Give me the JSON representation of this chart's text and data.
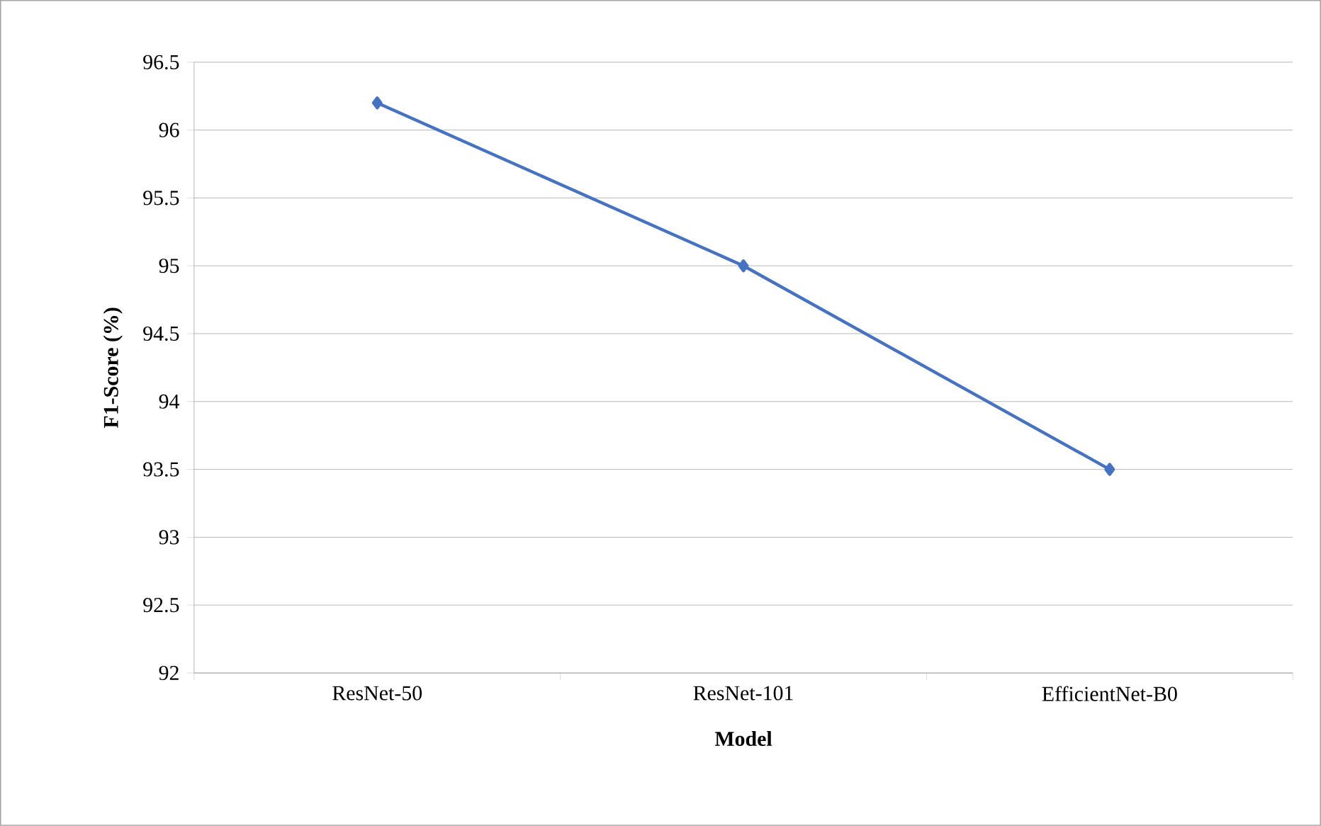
{
  "chart_data": {
    "type": "line",
    "xlabel": "Model",
    "ylabel": "F1-Score (%)",
    "categories": [
      "ResNet-50",
      "ResNet-101",
      "EfficientNet-B0"
    ],
    "series": [
      {
        "color": "#4472c4",
        "values": [
          96.2,
          95.0,
          93.5
        ]
      }
    ],
    "ylim": [
      92,
      96.5
    ],
    "yticks": [
      92,
      92.5,
      93,
      93.5,
      94,
      94.5,
      95,
      95.5,
      96,
      96.5
    ],
    "grid": "y",
    "marker": "diamond",
    "line_style": "solid"
  }
}
